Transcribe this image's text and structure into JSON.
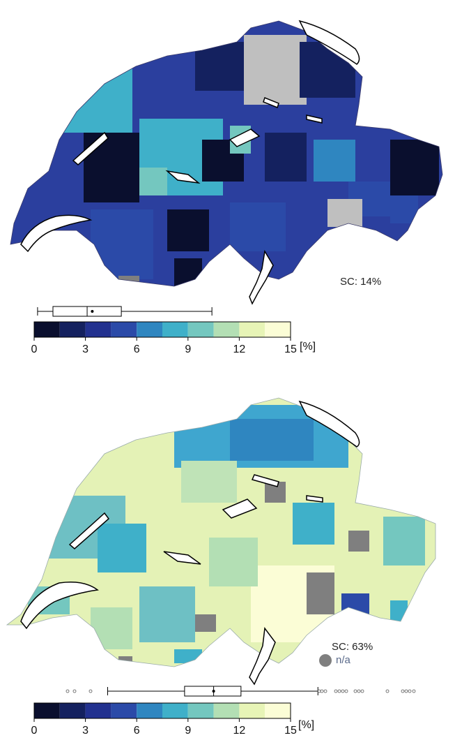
{
  "maps": [
    {
      "sc_label": "SC: 14%",
      "unit": "[%]",
      "tick_labels": [
        "0",
        "3",
        "6",
        "9",
        "12",
        "15"
      ],
      "color_scale": [
        "#0a0f2e",
        "#14215f",
        "#22318f",
        "#2b4aa8",
        "#2f86c0",
        "#3fb0c9",
        "#74c7bf",
        "#b3dfb4",
        "#e7f4b6",
        "#fbfdd6"
      ],
      "boxplot": {
        "min": 0.2,
        "q1": 1.1,
        "median": 3.1,
        "mean": 3.4,
        "q3": 5.1,
        "max": 10.4
      }
    },
    {
      "sc_label": "SC: 63%",
      "na_label": "n/a",
      "unit": "[%]",
      "tick_labels": [
        "0",
        "3",
        "6",
        "9",
        "12",
        "15"
      ],
      "color_scale": [
        "#0a0f2e",
        "#14215f",
        "#22318f",
        "#2b4aa8",
        "#2f86c0",
        "#3fb0c9",
        "#74c7bf",
        "#b3dfb4",
        "#e7f4b6",
        "#fbfdd6"
      ],
      "boxplot": {
        "min": 4.3,
        "q1": 8.8,
        "median": 10.5,
        "mean": 10.5,
        "q3": 12.1,
        "max": 16.6
      }
    }
  ]
}
